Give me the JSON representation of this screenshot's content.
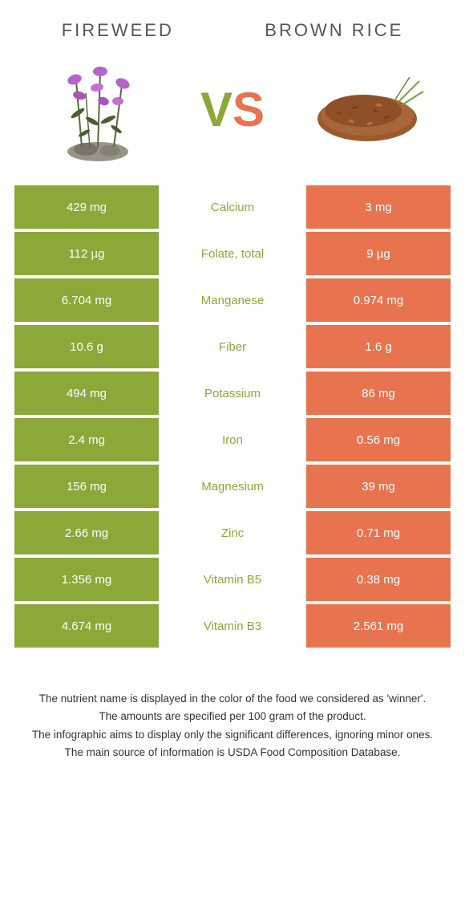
{
  "header": {
    "left": "Fireweed",
    "right": "Brown rice"
  },
  "vs": {
    "v": "V",
    "s": "S"
  },
  "colors": {
    "green": "#8ba838",
    "orange": "#e8734f"
  },
  "rows": [
    {
      "left": "429 mg",
      "mid": "Calcium",
      "right": "3 mg",
      "winner": "green"
    },
    {
      "left": "112 µg",
      "mid": "Folate, total",
      "right": "9 µg",
      "winner": "green"
    },
    {
      "left": "6.704 mg",
      "mid": "Manganese",
      "right": "0.974 mg",
      "winner": "green"
    },
    {
      "left": "10.6 g",
      "mid": "Fiber",
      "right": "1.6 g",
      "winner": "green"
    },
    {
      "left": "494 mg",
      "mid": "Potassium",
      "right": "86 mg",
      "winner": "green"
    },
    {
      "left": "2.4 mg",
      "mid": "Iron",
      "right": "0.56 mg",
      "winner": "green"
    },
    {
      "left": "156 mg",
      "mid": "Magnesium",
      "right": "39 mg",
      "winner": "green"
    },
    {
      "left": "2.66 mg",
      "mid": "Zinc",
      "right": "0.71 mg",
      "winner": "green"
    },
    {
      "left": "1.356 mg",
      "mid": "Vitamin B5",
      "right": "0.38 mg",
      "winner": "green"
    },
    {
      "left": "4.674 mg",
      "mid": "Vitamin B3",
      "right": "2.561 mg",
      "winner": "green"
    }
  ],
  "footer": {
    "l1": "The nutrient name is displayed in the color of the food we considered as 'winner'.",
    "l2": "The amounts are specified per 100 gram of the product.",
    "l3": "The infographic aims to display only the significant differences, ignoring minor ones.",
    "l4": "The main source of information is USDA Food Composition Database."
  }
}
